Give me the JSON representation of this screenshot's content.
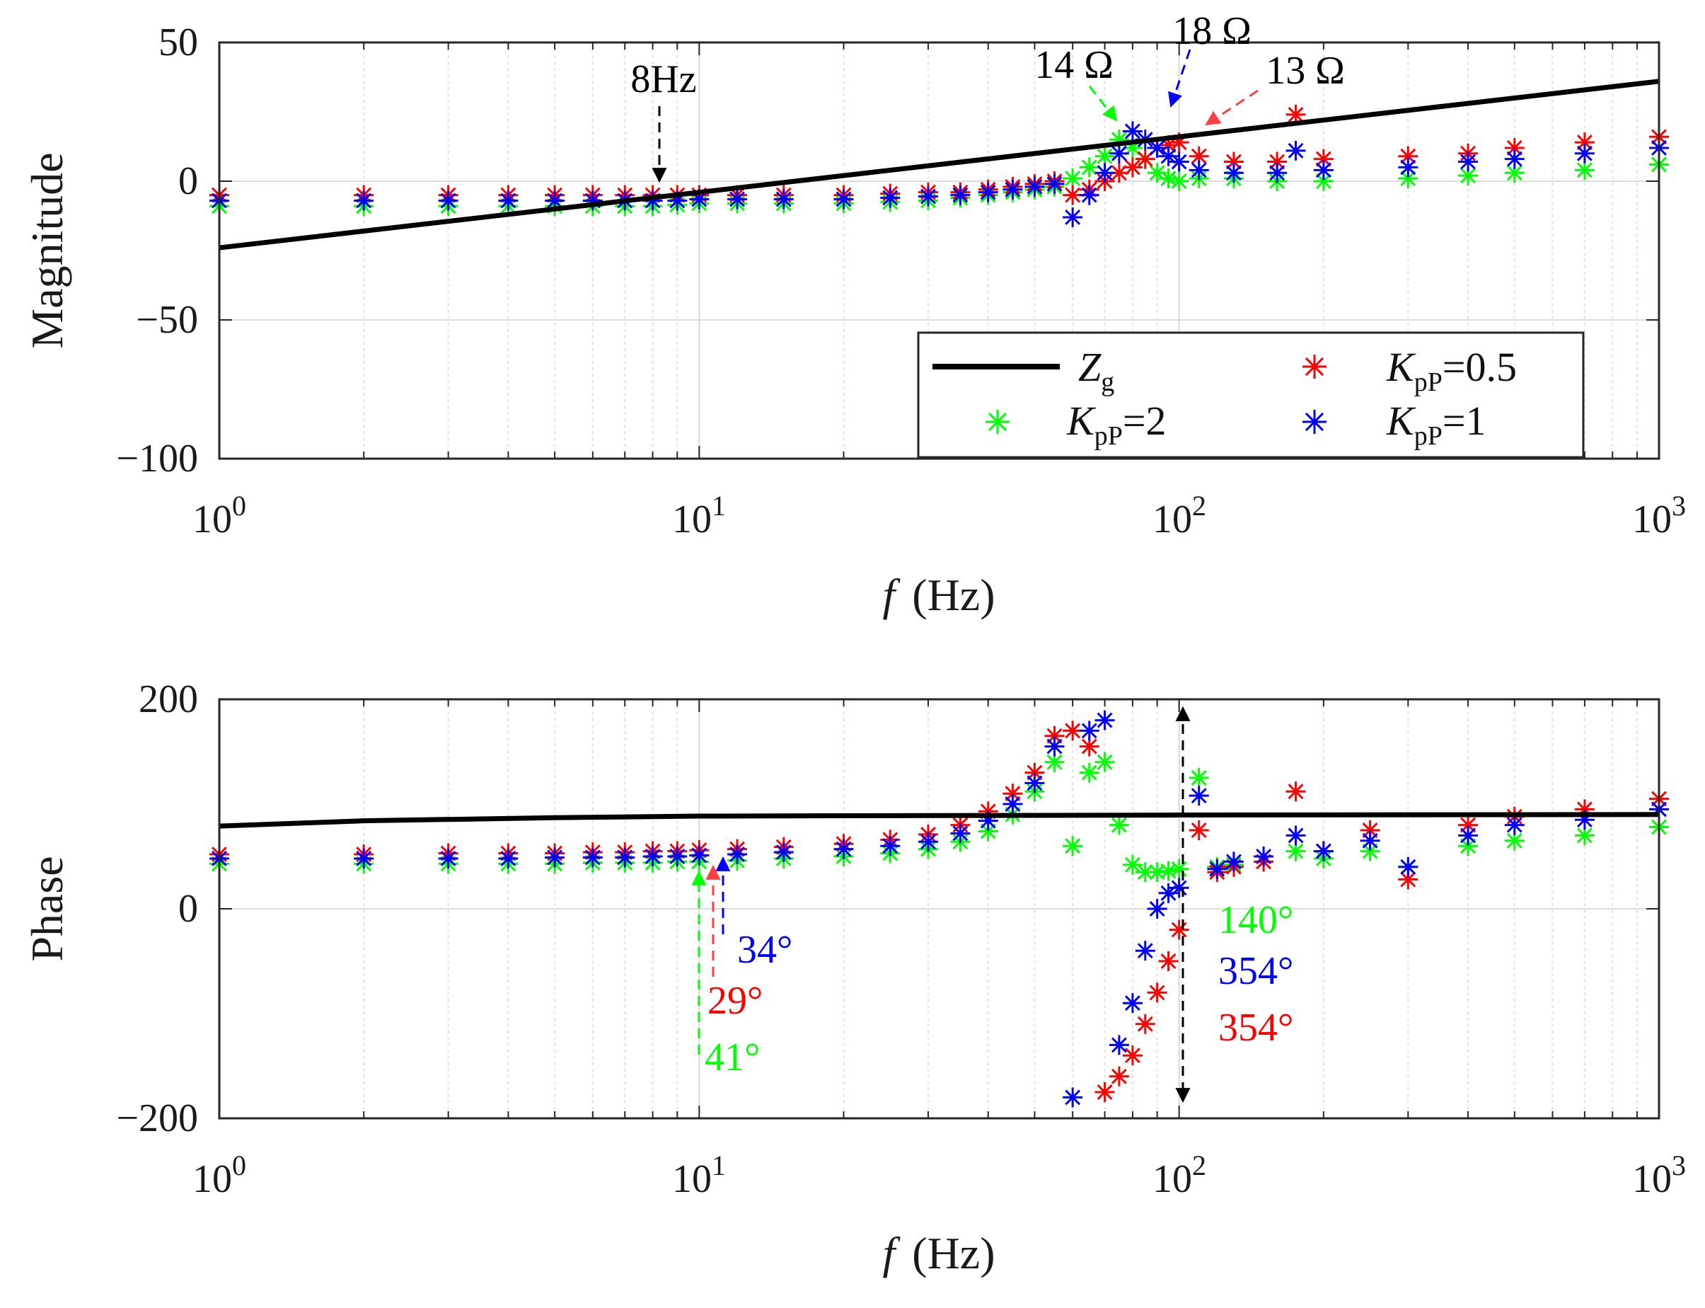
{
  "chart_data": [
    {
      "type": "scatter",
      "title": "",
      "xscale": "log",
      "xlim": [
        1,
        1000
      ],
      "ylim": [
        -100,
        50
      ],
      "xlabel": "f (Hz)",
      "xlabel_var": "f",
      "xlabel_unit": "(Hz)",
      "ylabel": "Magnitude",
      "grid": true,
      "yticks": [
        "50",
        "0",
        "−50",
        "−100"
      ],
      "xticks": [
        "10",
        "10",
        "10",
        "10"
      ],
      "xtick_exps": [
        "0",
        "1",
        "2",
        "3"
      ],
      "legend": {
        "position": "bottom-right",
        "entries": [
          {
            "base": "Z",
            "sub": "g",
            "suffix": "",
            "color": "#000000",
            "marker": "line"
          },
          {
            "base": "K",
            "sub": "pP",
            "suffix": "=0.5",
            "color": "#ff0000",
            "marker": "asterisk"
          },
          {
            "base": "K",
            "sub": "pP",
            "suffix": "=2",
            "color": "#00ff00",
            "marker": "asterisk"
          },
          {
            "base": "K",
            "sub": "pP",
            "suffix": "=1",
            "color": "#0000ff",
            "marker": "asterisk"
          }
        ]
      },
      "series": [
        {
          "name": "Z_g",
          "kind": "line",
          "color": "#000000",
          "x": [
            1,
            10,
            100,
            1000
          ],
          "y": [
            -24,
            -4,
            16,
            36
          ]
        },
        {
          "name": "KpP=2",
          "kind": "scatter",
          "color": "#00ff00",
          "x": [
            1,
            2,
            3,
            4,
            5,
            6,
            7,
            8,
            9,
            10,
            12,
            15,
            20,
            25,
            30,
            35,
            40,
            45,
            50,
            55,
            60,
            65,
            70,
            75,
            80,
            85,
            90,
            95,
            100,
            110,
            130,
            160,
            200,
            300,
            400,
            500,
            700,
            1000
          ],
          "y": [
            -9,
            -9,
            -9,
            -9,
            -9,
            -9,
            -9,
            -9,
            -8.5,
            -8,
            -8,
            -8,
            -8,
            -7.5,
            -7,
            -6,
            -5,
            -4,
            -3,
            -2,
            1,
            5,
            9,
            15,
            12,
            8,
            3,
            1,
            0,
            1,
            1,
            0,
            0,
            1,
            2,
            3,
            4,
            6
          ]
        },
        {
          "name": "KpP=0.5",
          "kind": "scatter",
          "color": "#ff0000",
          "x": [
            1,
            2,
            3,
            4,
            5,
            6,
            7,
            8,
            9,
            10,
            12,
            15,
            20,
            25,
            30,
            35,
            40,
            45,
            50,
            55,
            60,
            65,
            70,
            75,
            80,
            85,
            90,
            95,
            100,
            110,
            130,
            160,
            175,
            200,
            300,
            400,
            500,
            700,
            1000
          ],
          "y": [
            -5,
            -5,
            -5,
            -5,
            -5,
            -5,
            -5,
            -5,
            -5,
            -5,
            -5,
            -5,
            -5,
            -4.5,
            -4,
            -4,
            -3,
            -2,
            -1,
            0,
            -5,
            -3,
            0,
            3,
            5,
            8,
            12,
            13,
            14,
            9,
            7,
            7,
            24,
            8,
            9,
            10,
            12,
            14,
            16
          ]
        },
        {
          "name": "KpP=1",
          "kind": "scatter",
          "color": "#0000ff",
          "x": [
            1,
            2,
            3,
            4,
            5,
            6,
            7,
            8,
            9,
            10,
            12,
            15,
            20,
            25,
            30,
            35,
            40,
            45,
            50,
            55,
            60,
            65,
            70,
            75,
            80,
            85,
            90,
            95,
            100,
            110,
            130,
            160,
            175,
            200,
            300,
            400,
            500,
            700,
            1000
          ],
          "y": [
            -7,
            -7,
            -7,
            -7,
            -7,
            -7,
            -7,
            -7,
            -7,
            -6.5,
            -6.5,
            -6.5,
            -6.5,
            -6,
            -5.5,
            -5,
            -4,
            -3,
            -2,
            -1,
            -13,
            -5,
            3,
            10,
            18,
            15,
            12,
            9,
            7,
            4,
            3,
            3,
            11,
            4,
            5,
            7,
            8,
            10,
            12
          ]
        }
      ],
      "annotations": [
        {
          "text": "8Hz",
          "color": "#000000",
          "x": 8.2,
          "y": -2
        },
        {
          "text": "14 Ω",
          "color": "#000000",
          "x": 74,
          "y": 14
        },
        {
          "text": "18 Ω",
          "color": "#000000",
          "x": 86,
          "y": 18
        },
        {
          "text": "13 Ω",
          "color": "#000000",
          "x": 107,
          "y": 13
        }
      ]
    },
    {
      "type": "scatter",
      "title": "",
      "xscale": "log",
      "xlim": [
        1,
        1000
      ],
      "ylim": [
        -200,
        200
      ],
      "xlabel": "f (Hz)",
      "xlabel_var": "f",
      "xlabel_unit": "(Hz)",
      "ylabel": "Phase",
      "grid": true,
      "yticks": [
        "200",
        "0",
        "−200"
      ],
      "xticks": [
        "10",
        "10",
        "10",
        "10"
      ],
      "xtick_exps": [
        "0",
        "1",
        "2",
        "3"
      ],
      "series": [
        {
          "name": "Z_g",
          "kind": "line",
          "color": "#000000",
          "x": [
            1,
            2,
            5,
            10,
            100,
            1000
          ],
          "y": [
            79,
            84,
            87,
            88.5,
            89.5,
            90
          ]
        },
        {
          "name": "KpP=2",
          "kind": "scatter",
          "color": "#00ff00",
          "x": [
            1,
            2,
            3,
            4,
            5,
            6,
            7,
            8,
            9,
            10,
            12,
            15,
            20,
            25,
            30,
            35,
            40,
            45,
            50,
            55,
            60,
            65,
            70,
            75,
            80,
            85,
            90,
            95,
            100,
            110,
            120,
            130,
            150,
            175,
            200,
            250,
            300,
            400,
            500,
            700,
            1000
          ],
          "y": [
            43,
            43,
            43,
            43,
            43,
            44,
            44,
            44,
            45,
            45,
            46,
            48,
            50,
            53,
            57,
            64,
            74,
            90,
            112,
            140,
            60,
            130,
            140,
            80,
            42,
            35,
            35,
            36,
            38,
            125,
            40,
            42,
            45,
            55,
            48,
            55,
            40,
            60,
            65,
            70,
            78
          ]
        },
        {
          "name": "KpP=0.5",
          "kind": "scatter",
          "color": "#ff0000",
          "x": [
            1,
            2,
            3,
            4,
            5,
            6,
            7,
            8,
            9,
            10,
            12,
            15,
            20,
            25,
            30,
            35,
            40,
            45,
            50,
            55,
            60,
            65,
            70,
            75,
            80,
            85,
            90,
            95,
            100,
            110,
            120,
            130,
            150,
            175,
            200,
            250,
            300,
            400,
            500,
            700,
            1000
          ],
          "y": [
            52,
            52,
            53,
            53,
            53,
            54,
            54,
            55,
            55,
            56,
            57,
            59,
            62,
            66,
            71,
            80,
            93,
            110,
            130,
            165,
            170,
            155,
            -175,
            -160,
            -140,
            -110,
            -80,
            -50,
            -20,
            75,
            35,
            40,
            45,
            112,
            55,
            75,
            28,
            80,
            88,
            95,
            105
          ]
        },
        {
          "name": "KpP=1",
          "kind": "scatter",
          "color": "#0000ff",
          "x": [
            1,
            2,
            3,
            4,
            5,
            6,
            7,
            8,
            9,
            10,
            12,
            15,
            20,
            25,
            30,
            35,
            40,
            45,
            50,
            55,
            60,
            65,
            70,
            75,
            80,
            85,
            90,
            95,
            100,
            110,
            120,
            130,
            150,
            175,
            200,
            250,
            300,
            400,
            500,
            700,
            1000
          ],
          "y": [
            48,
            48,
            48,
            48,
            49,
            49,
            49,
            50,
            50,
            51,
            52,
            54,
            57,
            60,
            64,
            72,
            84,
            100,
            120,
            155,
            -180,
            170,
            180,
            -130,
            -90,
            -40,
            0,
            15,
            20,
            108,
            38,
            45,
            50,
            70,
            55,
            65,
            40,
            70,
            80,
            85,
            95
          ]
        }
      ],
      "annotations": [
        {
          "text": "34°",
          "color": "#0000ff"
        },
        {
          "text": "29°",
          "color": "#ff0000"
        },
        {
          "text": "41°",
          "color": "#00ff00"
        },
        {
          "text": "140°",
          "color": "#00ff00"
        },
        {
          "text": "354°",
          "color": "#0000ff"
        },
        {
          "text": "354°",
          "color": "#ff0000"
        }
      ]
    }
  ]
}
